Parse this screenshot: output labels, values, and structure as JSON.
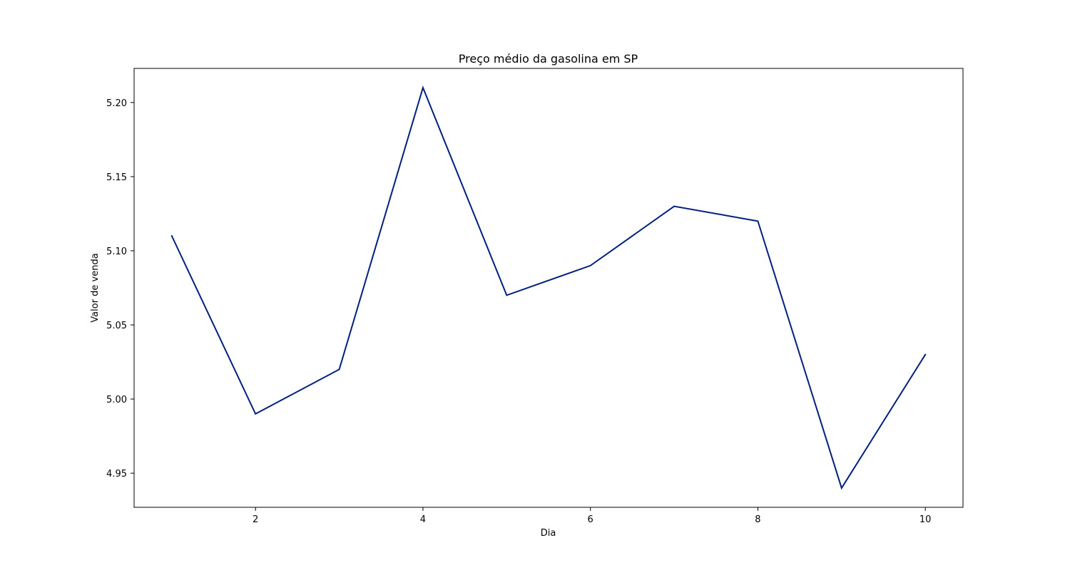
{
  "chart_data": {
    "type": "line",
    "title": "Preço médio da gasolina em SP",
    "xlabel": "Dia",
    "ylabel": "Valor de venda",
    "x": [
      1,
      2,
      3,
      4,
      5,
      6,
      7,
      8,
      9,
      10
    ],
    "series": [
      {
        "values": [
          5.11,
          4.99,
          5.02,
          5.21,
          5.07,
          5.09,
          5.13,
          5.12,
          4.94,
          5.03
        ],
        "color": "#001f7f"
      }
    ],
    "xlim": [
      0.55,
      10.45
    ],
    "ylim": [
      4.927,
      5.223
    ],
    "x_ticks": [
      2,
      4,
      6,
      8,
      10
    ],
    "x_tick_labels": [
      "2",
      "4",
      "6",
      "8",
      "10"
    ],
    "y_ticks": [
      4.95,
      5.0,
      5.05,
      5.1,
      5.15,
      5.2
    ],
    "y_tick_labels": [
      "4.95",
      "5.00",
      "5.05",
      "5.10",
      "5.15",
      "5.20"
    ],
    "grid": false,
    "legend": "none"
  }
}
